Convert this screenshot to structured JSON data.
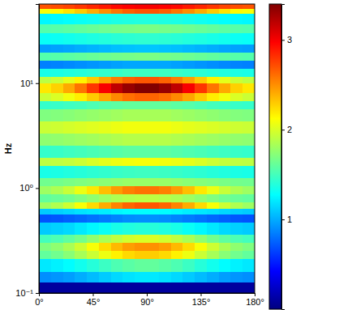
{
  "chart_data": {
    "type": "heatmap",
    "y_label": "Hz",
    "log": "y",
    "color": "jet",
    "xlim": [
      0,
      180
    ],
    "xticks": [
      {
        "value": 0,
        "label": "0°"
      },
      {
        "value": 45,
        "label": "45°"
      },
      {
        "value": 90,
        "label": "90°"
      },
      {
        "value": 135,
        "label": "135°"
      },
      {
        "value": 180,
        "label": "180°"
      }
    ],
    "ylim": [
      0.1,
      56.8
    ],
    "yticks": [
      {
        "value": 0.1,
        "label": "10⁻¹"
      },
      {
        "value": 1,
        "label": "10⁰"
      },
      {
        "value": 10,
        "label": "10¹"
      }
    ],
    "x_edges": [
      0,
      10,
      20,
      30,
      40,
      50,
      60,
      70,
      80,
      90,
      100,
      110,
      120,
      130,
      140,
      150,
      160,
      170,
      180
    ],
    "y_edges": [
      0.1,
      0.128,
      0.161,
      0.214,
      0.256,
      0.305,
      0.365,
      0.475,
      0.567,
      0.643,
      0.74,
      0.883,
      1.05,
      1.26,
      1.64,
      1.96,
      2.56,
      3.34,
      4.35,
      5.67,
      6.77,
      8.09,
      10,
      11.5,
      13.8,
      16.4,
      19.6,
      23.4,
      30.5,
      36.5,
      46.7,
      51.9,
      56.8
    ],
    "cells": [
      [
        0.1,
        0.1,
        0.1,
        0.1,
        0.1,
        0.1,
        0.1,
        0.1,
        0.1,
        0.1,
        0.1,
        0.1,
        0.1,
        0.1,
        0.1,
        0.1,
        0.1,
        0.1
      ],
      [
        0.9,
        0.92,
        0.95,
        1.0,
        1.05,
        1.1,
        1.15,
        1.18,
        1.2,
        1.2,
        1.18,
        1.15,
        1.1,
        1.05,
        1.0,
        0.95,
        0.92,
        0.9
      ],
      [
        1.2,
        1.23,
        1.27,
        1.33,
        1.4,
        1.47,
        1.53,
        1.57,
        1.6,
        1.6,
        1.57,
        1.53,
        1.47,
        1.4,
        1.33,
        1.27,
        1.23,
        1.2
      ],
      [
        1.6,
        1.65,
        1.73,
        1.83,
        1.95,
        2.07,
        2.17,
        2.25,
        2.29,
        2.29,
        2.25,
        2.17,
        2.07,
        1.95,
        1.83,
        1.73,
        1.65,
        1.6
      ],
      [
        1.7,
        1.75,
        1.84,
        1.96,
        2.1,
        2.24,
        2.36,
        2.45,
        2.49,
        2.49,
        2.45,
        2.36,
        2.24,
        2.1,
        1.96,
        1.84,
        1.75,
        1.7
      ],
      [
        1.5,
        1.53,
        1.59,
        1.66,
        1.75,
        1.84,
        1.91,
        1.97,
        2.0,
        2.0,
        1.97,
        1.91,
        1.84,
        1.75,
        1.66,
        1.59,
        1.53,
        1.5
      ],
      [
        1.1,
        1.12,
        1.15,
        1.2,
        1.25,
        1.3,
        1.35,
        1.38,
        1.4,
        1.4,
        1.38,
        1.35,
        1.3,
        1.25,
        1.2,
        1.15,
        1.12,
        1.1
      ],
      [
        0.7,
        0.71,
        0.74,
        0.77,
        0.8,
        0.83,
        0.86,
        0.89,
        0.9,
        0.9,
        0.89,
        0.86,
        0.83,
        0.8,
        0.77,
        0.74,
        0.71,
        0.7
      ],
      [
        1.1,
        1.12,
        1.15,
        1.18,
        1.2,
        1.22,
        1.25,
        1.27,
        1.28,
        1.28,
        1.27,
        1.25,
        1.22,
        1.2,
        1.18,
        1.15,
        1.12,
        1.1
      ],
      [
        1.8,
        1.86,
        1.96,
        2.1,
        2.25,
        2.4,
        2.54,
        2.64,
        2.69,
        2.69,
        2.64,
        2.54,
        2.4,
        2.25,
        2.1,
        1.96,
        1.86,
        1.8
      ],
      [
        1.6,
        1.62,
        1.65,
        1.7,
        1.75,
        1.8,
        1.85,
        1.88,
        1.9,
        1.9,
        1.88,
        1.85,
        1.8,
        1.75,
        1.7,
        1.65,
        1.62,
        1.6
      ],
      [
        1.8,
        1.85,
        1.94,
        2.06,
        2.2,
        2.34,
        2.46,
        2.55,
        2.59,
        2.59,
        2.55,
        2.46,
        2.34,
        2.2,
        2.06,
        1.94,
        1.85,
        1.8
      ],
      [
        1.65,
        1.66,
        1.68,
        1.7,
        1.72,
        1.74,
        1.76,
        1.78,
        1.78,
        1.78,
        1.78,
        1.76,
        1.74,
        1.72,
        1.7,
        1.68,
        1.66,
        1.65
      ],
      [
        1.35,
        1.36,
        1.38,
        1.4,
        1.42,
        1.44,
        1.46,
        1.47,
        1.48,
        1.48,
        1.47,
        1.46,
        1.44,
        1.42,
        1.4,
        1.38,
        1.36,
        1.35
      ],
      [
        1.9,
        1.91,
        1.93,
        1.96,
        2.0,
        2.04,
        2.07,
        2.09,
        2.1,
        2.1,
        2.09,
        2.07,
        2.04,
        2.0,
        1.96,
        1.93,
        1.91,
        1.9
      ],
      [
        1.45,
        1.46,
        1.48,
        1.5,
        1.52,
        1.54,
        1.56,
        1.58,
        1.58,
        1.58,
        1.58,
        1.56,
        1.54,
        1.52,
        1.5,
        1.48,
        1.46,
        1.45
      ],
      [
        1.75,
        1.76,
        1.78,
        1.8,
        1.82,
        1.84,
        1.86,
        1.88,
        1.88,
        1.88,
        1.88,
        1.86,
        1.84,
        1.82,
        1.8,
        1.78,
        1.76,
        1.75
      ],
      [
        1.95,
        1.96,
        1.98,
        2.0,
        2.02,
        2.04,
        2.06,
        2.08,
        2.08,
        2.08,
        2.08,
        2.06,
        2.04,
        2.02,
        2.0,
        1.98,
        1.96,
        1.95
      ],
      [
        1.7,
        1.71,
        1.73,
        1.75,
        1.77,
        1.79,
        1.81,
        1.83,
        1.83,
        1.83,
        1.83,
        1.81,
        1.79,
        1.77,
        1.75,
        1.73,
        1.71,
        1.7
      ],
      [
        1.45,
        1.46,
        1.48,
        1.5,
        1.53,
        1.56,
        1.58,
        1.6,
        1.6,
        1.6,
        1.6,
        1.58,
        1.56,
        1.53,
        1.5,
        1.48,
        1.46,
        1.45
      ],
      [
        1.95,
        2.0,
        2.08,
        2.18,
        2.3,
        2.42,
        2.52,
        2.6,
        2.64,
        2.64,
        2.6,
        2.52,
        2.42,
        2.3,
        2.18,
        2.08,
        2.0,
        1.95
      ],
      [
        2.2,
        2.28,
        2.41,
        2.59,
        2.8,
        3.0,
        3.19,
        3.32,
        3.39,
        3.39,
        3.32,
        3.19,
        3.0,
        2.8,
        2.59,
        2.41,
        2.28,
        2.2
      ],
      [
        1.9,
        1.95,
        2.04,
        2.16,
        2.3,
        2.44,
        2.56,
        2.65,
        2.69,
        2.69,
        2.65,
        2.56,
        2.44,
        2.3,
        2.16,
        2.04,
        1.95,
        1.9
      ],
      [
        1.35,
        1.36,
        1.38,
        1.4,
        1.42,
        1.44,
        1.46,
        1.48,
        1.48,
        1.48,
        1.48,
        1.46,
        1.44,
        1.42,
        1.4,
        1.38,
        1.36,
        1.35
      ],
      [
        0.85,
        0.86,
        0.88,
        0.9,
        0.92,
        0.94,
        0.96,
        0.98,
        0.98,
        0.98,
        0.98,
        0.96,
        0.94,
        0.92,
        0.9,
        0.88,
        0.86,
        0.85
      ],
      [
        1.55,
        1.56,
        1.58,
        1.6,
        1.62,
        1.64,
        1.66,
        1.67,
        1.68,
        1.68,
        1.67,
        1.66,
        1.64,
        1.62,
        1.6,
        1.58,
        1.56,
        1.55
      ],
      [
        0.95,
        0.96,
        0.98,
        1.0,
        1.02,
        1.04,
        1.06,
        1.07,
        1.08,
        1.08,
        1.07,
        1.06,
        1.04,
        1.02,
        1.0,
        0.98,
        0.96,
        0.95
      ],
      [
        1.3,
        1.31,
        1.33,
        1.35,
        1.37,
        1.39,
        1.41,
        1.42,
        1.43,
        1.43,
        1.42,
        1.41,
        1.39,
        1.37,
        1.35,
        1.33,
        1.31,
        1.3
      ],
      [
        1.55,
        1.56,
        1.58,
        1.6,
        1.62,
        1.64,
        1.66,
        1.67,
        1.68,
        1.68,
        1.67,
        1.66,
        1.64,
        1.62,
        1.6,
        1.58,
        1.56,
        1.55
      ],
      [
        1.25,
        1.26,
        1.28,
        1.3,
        1.32,
        1.34,
        1.36,
        1.37,
        1.38,
        1.38,
        1.37,
        1.36,
        1.34,
        1.32,
        1.3,
        1.28,
        1.26,
        1.25
      ],
      [
        2.1,
        2.14,
        2.21,
        2.3,
        2.4,
        2.5,
        2.59,
        2.66,
        2.7,
        2.7,
        2.66,
        2.59,
        2.5,
        2.4,
        2.3,
        2.21,
        2.14,
        2.1
      ],
      [
        2.7,
        2.72,
        2.75,
        2.8,
        2.85,
        2.9,
        2.95,
        2.98,
        3.0,
        3.0,
        2.98,
        2.95,
        2.9,
        2.85,
        2.8,
        2.75,
        2.72,
        2.7
      ]
    ],
    "colorbar": {
      "range": [
        0,
        3.4
      ],
      "ticks": [
        1,
        2,
        3
      ]
    }
  }
}
